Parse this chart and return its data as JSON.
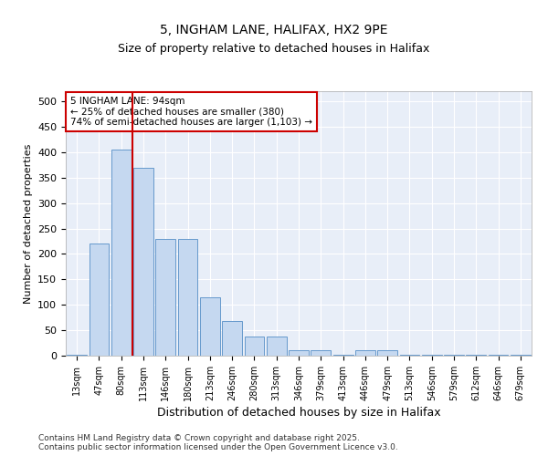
{
  "title1": "5, INGHAM LANE, HALIFAX, HX2 9PE",
  "title2": "Size of property relative to detached houses in Halifax",
  "xlabel": "Distribution of detached houses by size in Halifax",
  "ylabel": "Number of detached properties",
  "categories": [
    "13sqm",
    "47sqm",
    "80sqm",
    "113sqm",
    "146sqm",
    "180sqm",
    "213sqm",
    "246sqm",
    "280sqm",
    "313sqm",
    "346sqm",
    "379sqm",
    "413sqm",
    "446sqm",
    "479sqm",
    "513sqm",
    "546sqm",
    "579sqm",
    "612sqm",
    "646sqm",
    "679sqm"
  ],
  "values": [
    2,
    220,
    405,
    370,
    230,
    230,
    115,
    68,
    38,
    38,
    10,
    10,
    2,
    10,
    10,
    2,
    2,
    2,
    2,
    2,
    2
  ],
  "bar_color": "#c5d8f0",
  "bar_edge_color": "#6699cc",
  "vline_color": "#cc0000",
  "vline_pos": 2.5,
  "annotation_text": "5 INGHAM LANE: 94sqm\n← 25% of detached houses are smaller (380)\n74% of semi-detached houses are larger (1,103) →",
  "annotation_box_color": "#cc0000",
  "ylim": [
    0,
    520
  ],
  "yticks": [
    0,
    50,
    100,
    150,
    200,
    250,
    300,
    350,
    400,
    450,
    500
  ],
  "background_color": "#e8eef8",
  "footer1": "Contains HM Land Registry data © Crown copyright and database right 2025.",
  "footer2": "Contains public sector information licensed under the Open Government Licence v3.0."
}
